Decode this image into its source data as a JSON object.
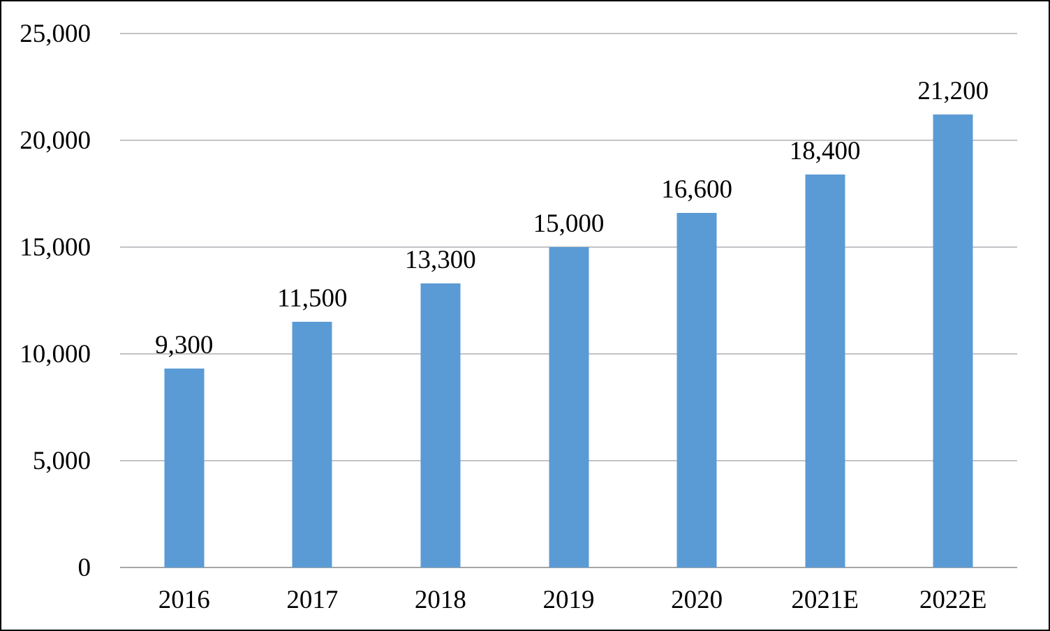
{
  "chart": {
    "bar_color": "#5b9bd5",
    "gridline_color": "#c3c3c7",
    "axis_line_color": "#a6a6a6",
    "frame_border_color": "#000000",
    "background_color": "#ffffff"
  },
  "chart_data": {
    "type": "bar",
    "title": "",
    "xlabel": "",
    "ylabel": "",
    "categories": [
      "2016",
      "2017",
      "2018",
      "2019",
      "2020",
      "2021E",
      "2022E"
    ],
    "values": [
      9300,
      11500,
      13300,
      15000,
      16600,
      18400,
      21200
    ],
    "value_labels": [
      "9,300",
      "11,500",
      "13,300",
      "15,000",
      "16,600",
      "18,400",
      "21,200"
    ],
    "ylim": [
      0,
      25000
    ],
    "ytick_values": [
      0,
      5000,
      10000,
      15000,
      20000,
      25000
    ],
    "ytick_labels": [
      "0",
      "5,000",
      "10,000",
      "15,000",
      "20,000",
      "25,000"
    ],
    "grid": true,
    "legend_position": "none"
  }
}
